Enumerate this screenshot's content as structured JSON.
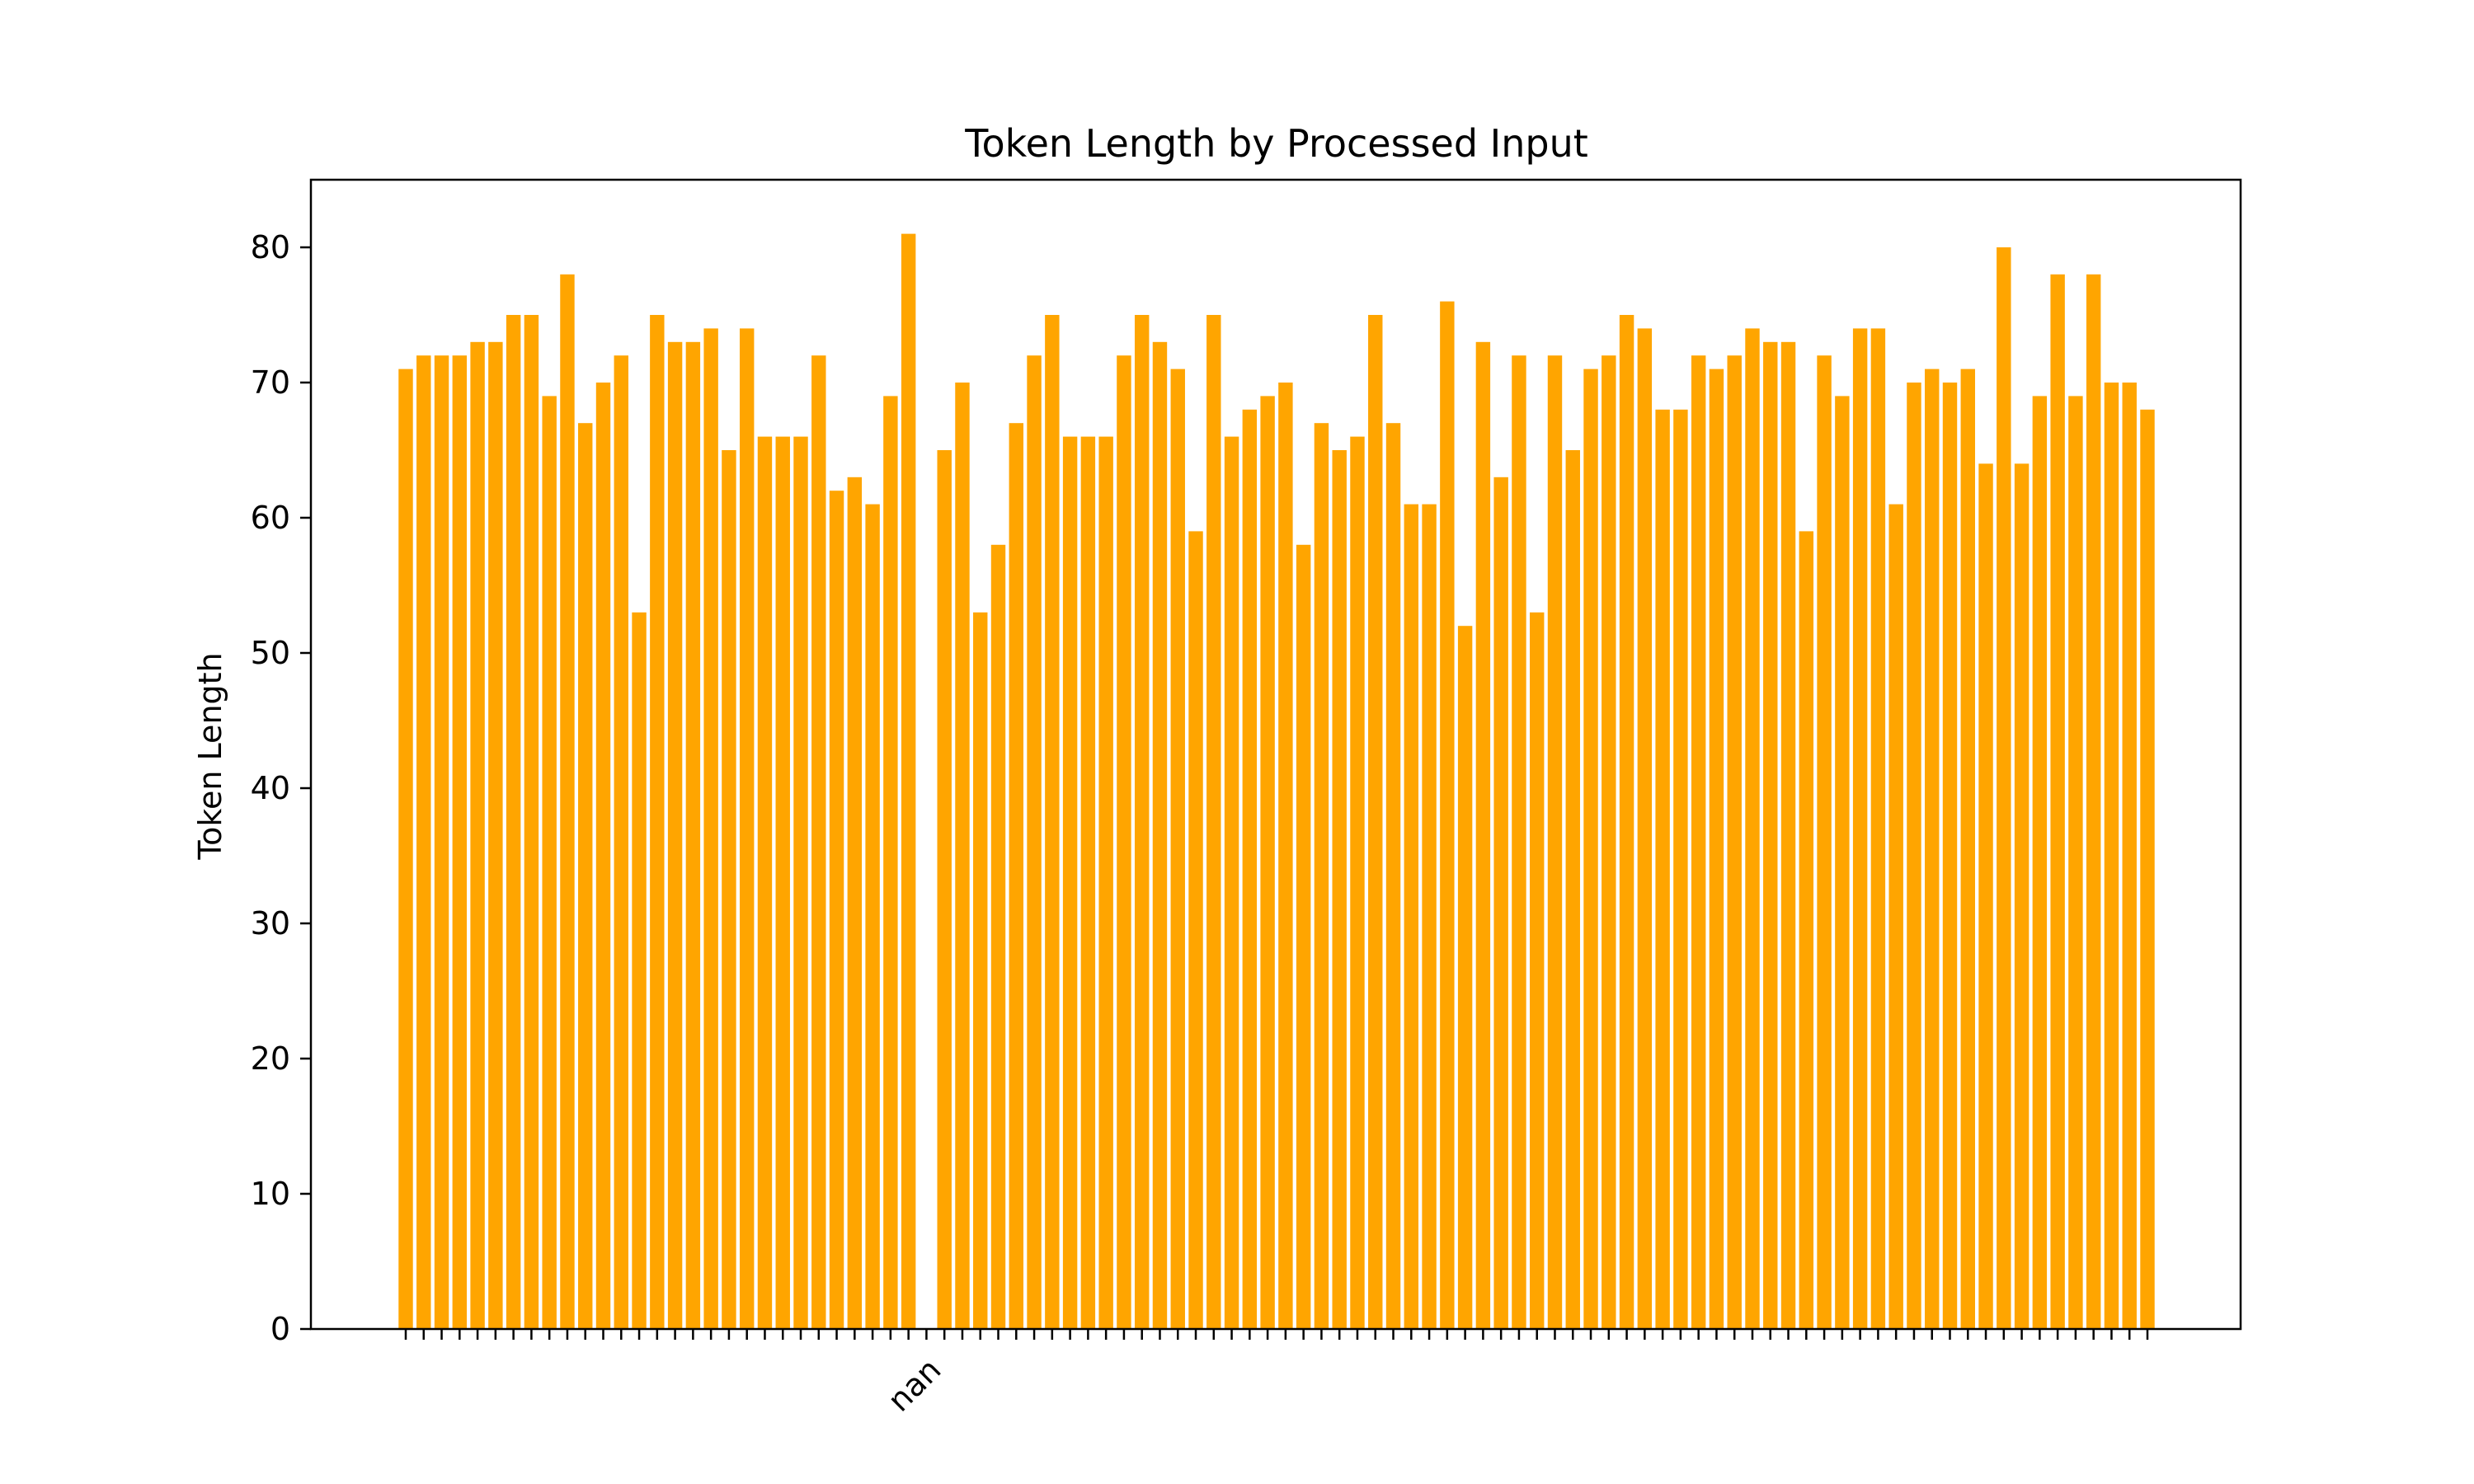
{
  "chart_data": {
    "type": "bar",
    "title": "Token Length by Processed Input",
    "xlabel": "",
    "ylabel": "Token Length",
    "ylim": [
      0,
      85
    ],
    "yticks": [
      0,
      10,
      20,
      30,
      40,
      50,
      60,
      70,
      80
    ],
    "grid": false,
    "bar_color": "#FFA500",
    "x_tick_labels": [
      {
        "index": 29,
        "label": "nan"
      }
    ],
    "values": [
      71,
      72,
      72,
      72,
      73,
      73,
      75,
      75,
      69,
      78,
      67,
      70,
      72,
      53,
      75,
      73,
      73,
      74,
      65,
      74,
      66,
      66,
      66,
      72,
      62,
      63,
      61,
      69,
      81,
      0,
      65,
      70,
      53,
      58,
      67,
      72,
      75,
      66,
      66,
      66,
      72,
      75,
      73,
      71,
      59,
      75,
      66,
      68,
      69,
      70,
      58,
      67,
      65,
      66,
      75,
      67,
      61,
      61,
      76,
      52,
      73,
      63,
      72,
      53,
      72,
      65,
      71,
      72,
      75,
      74,
      68,
      68,
      72,
      71,
      72,
      74,
      73,
      73,
      59,
      72,
      69,
      74,
      74,
      61,
      70,
      71,
      70,
      71,
      64,
      80,
      64,
      69,
      78,
      69,
      78,
      70,
      70,
      68
    ]
  }
}
